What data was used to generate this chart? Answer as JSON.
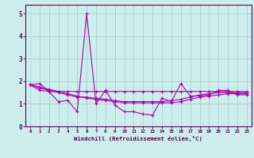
{
  "xlabel": "Windchill (Refroidissement éolien,°C)",
  "xlim": [
    -0.5,
    23.5
  ],
  "ylim": [
    0,
    5.4
  ],
  "yticks": [
    0,
    1,
    2,
    3,
    4,
    5
  ],
  "xticks": [
    0,
    1,
    2,
    3,
    4,
    5,
    6,
    7,
    8,
    9,
    10,
    11,
    12,
    13,
    14,
    15,
    16,
    17,
    18,
    19,
    20,
    21,
    22,
    23
  ],
  "bg_color": "#ceeeed",
  "grid_color": "#aad4d4",
  "line_color": "#aa00aa",
  "series": [
    [
      1.85,
      1.9,
      1.55,
      1.1,
      1.15,
      0.65,
      5.0,
      1.0,
      1.6,
      0.95,
      0.65,
      0.65,
      0.55,
      0.5,
      1.25,
      1.1,
      1.9,
      1.35,
      1.35,
      1.4,
      1.6,
      1.6,
      1.4,
      1.4
    ],
    [
      1.85,
      1.6,
      1.55,
      1.55,
      1.55,
      1.55,
      1.55,
      1.55,
      1.55,
      1.55,
      1.55,
      1.55,
      1.55,
      1.55,
      1.55,
      1.55,
      1.55,
      1.55,
      1.55,
      1.55,
      1.55,
      1.55,
      1.55,
      1.55
    ],
    [
      1.85,
      1.75,
      1.65,
      1.55,
      1.45,
      1.35,
      1.25,
      1.2,
      1.15,
      1.1,
      1.05,
      1.05,
      1.05,
      1.05,
      1.05,
      1.05,
      1.1,
      1.2,
      1.3,
      1.35,
      1.4,
      1.45,
      1.45,
      1.45
    ],
    [
      1.85,
      1.7,
      1.6,
      1.5,
      1.4,
      1.3,
      1.3,
      1.25,
      1.2,
      1.15,
      1.1,
      1.1,
      1.1,
      1.1,
      1.1,
      1.15,
      1.2,
      1.3,
      1.4,
      1.45,
      1.5,
      1.5,
      1.5,
      1.5
    ]
  ]
}
